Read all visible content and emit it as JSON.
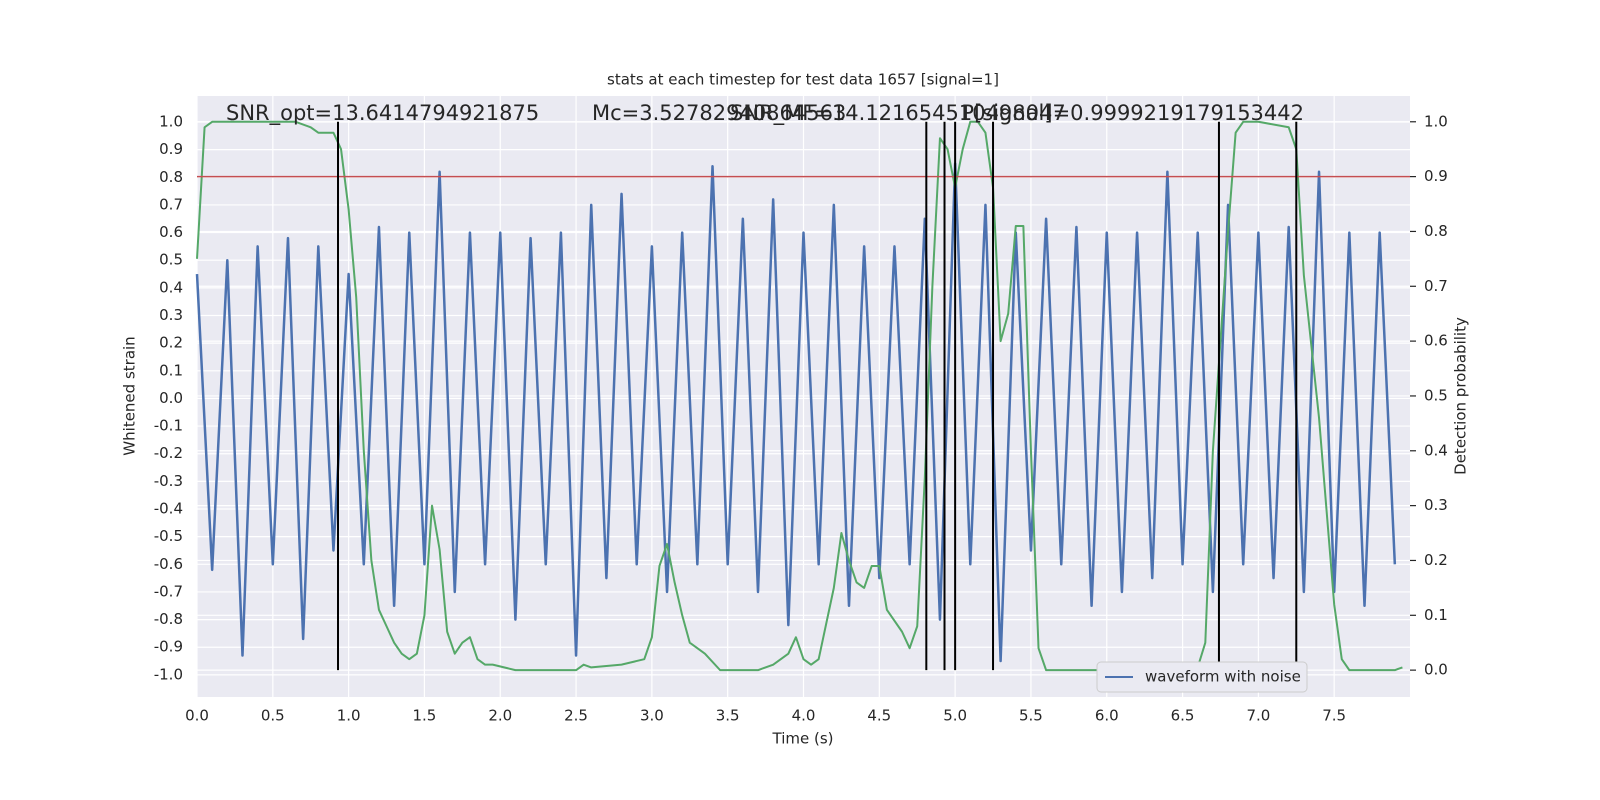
{
  "chart_data": {
    "type": "line",
    "title": "stats at each timestep for test data 1657 [signal=1]",
    "xlabel": "Time (s)",
    "ylabel": "Whitened strain",
    "y2label": "Detection probability",
    "annotations": [
      "SNR_opt=13.6414794921875",
      "Mc=3.52782940864563",
      "SNR_MF=14.121654510498047",
      "P[signal]=0.9999219179153442"
    ],
    "xlim": [
      0,
      8
    ],
    "ylim": [
      -1.08,
      1.094
    ],
    "y2lim": [
      -0.049,
      1.047
    ],
    "xticks": [
      {
        "value": 0,
        "label": "0.0"
      },
      0.5,
      {
        "value": 1,
        "label": "1.0"
      },
      1.5,
      {
        "value": 2,
        "label": "2.0"
      },
      2.5,
      {
        "value": 3,
        "label": "3.0"
      },
      3.5,
      {
        "value": 4,
        "label": "4.0"
      },
      4.5,
      {
        "value": 5,
        "label": "5.0"
      },
      5.5,
      {
        "value": 6,
        "label": "6.0"
      },
      6.5,
      {
        "value": 7,
        "label": "7.0"
      },
      7.5
    ],
    "yticks": [
      {
        "value": -1,
        "label": "-1.0"
      },
      -0.9,
      -0.8,
      -0.7,
      -0.6,
      -0.5,
      -0.4,
      -0.3,
      -0.2,
      -0.1,
      {
        "value": 0,
        "label": "0.0"
      },
      0.1,
      0.2,
      0.3,
      0.4,
      0.5,
      0.6,
      0.7,
      0.8,
      0.9,
      {
        "value": 1,
        "label": "1.0"
      }
    ],
    "y2ticks": [
      {
        "value": 0,
        "label": "0.0"
      },
      0.1,
      0.2,
      0.3,
      0.4,
      0.5,
      0.6,
      0.7,
      0.8,
      0.9,
      {
        "value": 1,
        "label": "1.0"
      }
    ],
    "grid": true,
    "legend": "lower right",
    "series": [
      {
        "name": "waveform with noise",
        "color": "#4c72b0",
        "x": [
          0.0,
          0.1,
          0.2,
          0.3,
          0.4,
          0.5,
          0.6,
          0.7,
          0.8,
          0.9,
          1.0,
          1.1,
          1.2,
          1.3,
          1.4,
          1.5,
          1.6,
          1.7,
          1.8,
          1.9,
          2.0,
          2.1,
          2.2,
          2.3,
          2.4,
          2.5,
          2.6,
          2.7,
          2.8,
          2.9,
          3.0,
          3.1,
          3.2,
          3.3,
          3.4,
          3.5,
          3.6,
          3.7,
          3.8,
          3.9,
          4.0,
          4.1,
          4.2,
          4.3,
          4.4,
          4.5,
          4.6,
          4.7,
          4.8,
          4.9,
          5.0,
          5.1,
          5.2,
          5.3,
          5.4,
          5.5,
          5.6,
          5.7,
          5.8,
          5.9,
          6.0,
          6.1,
          6.2,
          6.3,
          6.4,
          6.5,
          6.6,
          6.7,
          6.8,
          6.9,
          7.0,
          7.1,
          7.2,
          7.3,
          7.4,
          7.5,
          7.6,
          7.7,
          7.8,
          7.9
        ],
        "values": [
          0.45,
          -0.62,
          0.5,
          -0.93,
          0.55,
          -0.6,
          0.58,
          -0.87,
          0.55,
          -0.55,
          0.45,
          -0.6,
          0.62,
          -0.75,
          0.6,
          -0.6,
          0.82,
          -0.7,
          0.6,
          -0.6,
          0.6,
          -0.8,
          0.58,
          -0.6,
          0.6,
          -0.93,
          0.7,
          -0.65,
          0.74,
          -0.6,
          0.55,
          -0.7,
          0.6,
          -0.6,
          0.84,
          -0.6,
          0.65,
          -0.7,
          0.72,
          -0.82,
          0.6,
          -0.6,
          0.7,
          -0.75,
          0.55,
          -0.65,
          0.55,
          -0.6,
          0.65,
          -0.8,
          0.85,
          -0.6,
          0.7,
          -0.95,
          0.6,
          -0.55,
          0.65,
          -0.6,
          0.62,
          -0.75,
          0.6,
          -0.7,
          0.6,
          -0.65,
          0.82,
          -0.6,
          0.6,
          -0.7,
          0.7,
          -0.6,
          0.6,
          -0.65,
          0.62,
          -0.7,
          0.82,
          -0.7,
          0.6,
          -0.75,
          0.6,
          -0.6
        ]
      },
      {
        "color": "#55a868",
        "axis": "y2",
        "x": [
          0.0,
          0.05,
          0.1,
          0.3,
          0.5,
          0.65,
          0.75,
          0.8,
          0.9,
          0.95,
          1.0,
          1.05,
          1.1,
          1.15,
          1.2,
          1.25,
          1.3,
          1.35,
          1.4,
          1.45,
          1.5,
          1.55,
          1.6,
          1.65,
          1.7,
          1.75,
          1.8,
          1.85,
          1.9,
          1.95,
          2.1,
          2.5,
          2.55,
          2.6,
          2.8,
          2.95,
          3.0,
          3.05,
          3.1,
          3.15,
          3.2,
          3.25,
          3.35,
          3.45,
          3.6,
          3.7,
          3.8,
          3.9,
          3.95,
          4.0,
          4.05,
          4.1,
          4.2,
          4.25,
          4.3,
          4.35,
          4.4,
          4.45,
          4.5,
          4.55,
          4.65,
          4.7,
          4.75,
          4.8,
          4.85,
          4.9,
          4.95,
          5.0,
          5.05,
          5.1,
          5.15,
          5.2,
          5.25,
          5.3,
          5.35,
          5.4,
          5.45,
          5.5,
          5.55,
          5.6,
          5.7,
          5.8,
          6.0,
          6.5,
          6.6,
          6.65,
          6.7,
          6.8,
          6.85,
          6.9,
          7.0,
          7.2,
          7.25,
          7.3,
          7.4,
          7.5,
          7.55,
          7.6,
          7.9,
          7.95
        ],
        "values": [
          0.75,
          0.99,
          1.0,
          1.0,
          1.0,
          1.0,
          0.99,
          0.98,
          0.98,
          0.95,
          0.84,
          0.68,
          0.4,
          0.2,
          0.11,
          0.08,
          0.05,
          0.03,
          0.02,
          0.03,
          0.1,
          0.3,
          0.22,
          0.07,
          0.03,
          0.05,
          0.06,
          0.02,
          0.01,
          0.01,
          0.0,
          0.0,
          0.01,
          0.005,
          0.01,
          0.02,
          0.06,
          0.19,
          0.23,
          0.16,
          0.1,
          0.05,
          0.03,
          0.0,
          0.0,
          0.0,
          0.01,
          0.03,
          0.06,
          0.02,
          0.01,
          0.02,
          0.15,
          0.25,
          0.2,
          0.16,
          0.15,
          0.19,
          0.19,
          0.11,
          0.07,
          0.04,
          0.08,
          0.35,
          0.7,
          0.97,
          0.95,
          0.88,
          0.95,
          1.0,
          1.0,
          0.98,
          0.88,
          0.6,
          0.65,
          0.81,
          0.81,
          0.4,
          0.04,
          0.0,
          0.0,
          0.0,
          0.0,
          0.0,
          0.005,
          0.05,
          0.4,
          0.8,
          0.98,
          1.0,
          1.0,
          0.99,
          0.95,
          0.72,
          0.46,
          0.12,
          0.02,
          0.0,
          0.0,
          0.005
        ]
      }
    ],
    "hlines": [
      {
        "value": 0.9,
        "axis": "y2",
        "color": "#c44e52"
      }
    ],
    "vlines": {
      "color": "#000000",
      "x": [
        0.93,
        4.81,
        4.93,
        5.0,
        5.25,
        6.74,
        7.25
      ]
    }
  }
}
